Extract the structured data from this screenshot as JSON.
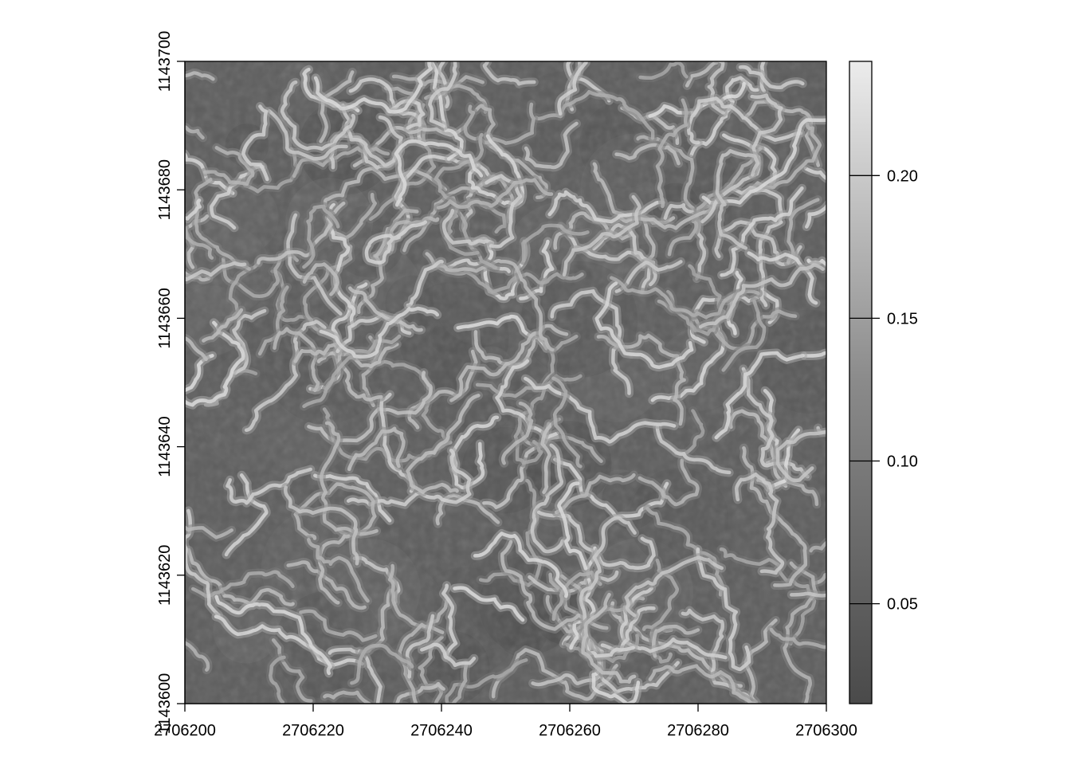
{
  "chart_data": {
    "type": "heatmap",
    "title": "",
    "xlabel": "",
    "ylabel": "",
    "xlim": [
      2706200,
      2706300
    ],
    "ylim": [
      1143600,
      1143700
    ],
    "x_ticks": [
      2706200,
      2706220,
      2706240,
      2706260,
      2706280,
      2706300
    ],
    "x_tick_labels": [
      "2706200",
      "2706220",
      "2706240",
      "2706260",
      "2706280",
      "2706300"
    ],
    "y_ticks": [
      1143600,
      1143620,
      1143640,
      1143660,
      1143680,
      1143700
    ],
    "y_tick_labels": [
      "1143600",
      "1143620",
      "1143640",
      "1143660",
      "1143680",
      "1143700"
    ],
    "colorbar": {
      "range": [
        0.015,
        0.24
      ],
      "ticks": [
        0.05,
        0.1,
        0.15,
        0.2
      ],
      "tick_labels": [
        "0.05",
        "0.10",
        "0.15",
        "0.20"
      ],
      "low_color": "#4a4a4a",
      "high_color": "#ececec"
    },
    "palette": "grayscale",
    "grid": false,
    "legend_position": "right",
    "values_summary": {
      "background_level": 0.06,
      "ridge_level": 0.17,
      "max_level": 0.24
    }
  }
}
